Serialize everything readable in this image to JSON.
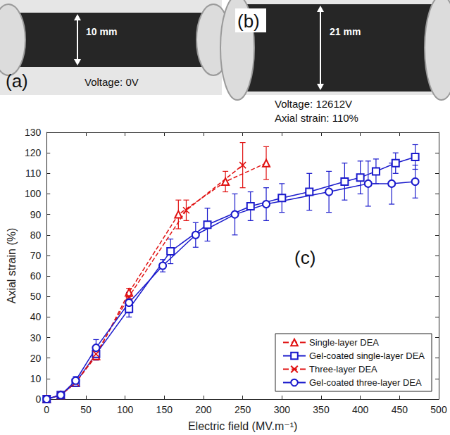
{
  "photos": [
    {
      "letter": "(a)",
      "dimension": "10 mm",
      "caption": [
        "Voltage: 0V"
      ]
    },
    {
      "letter": "(b)",
      "dimension": "21 mm",
      "caption": [
        "Voltage: 12612V",
        "Axial strain: 110%"
      ]
    }
  ],
  "chart_data": {
    "type": "line",
    "annotation": "(c)",
    "x_label": "Electric field (MV.m⁻¹)",
    "y_label": "Axial strain (%)",
    "xlim": [
      0,
      500
    ],
    "xticks": [
      0,
      50,
      100,
      150,
      200,
      250,
      300,
      350,
      400,
      450,
      500
    ],
    "ylim": [
      0,
      130
    ],
    "yticks": [
      0,
      10,
      20,
      30,
      40,
      50,
      60,
      70,
      80,
      90,
      100,
      110,
      120,
      130
    ],
    "grid": false,
    "legend": "lower right",
    "series": [
      {
        "name": "Single-layer DEA",
        "color": "#e01010",
        "marker": "triangle",
        "line_style": "dashed",
        "x": [
          0,
          18,
          37,
          63,
          105,
          168,
          228,
          280
        ],
        "values": [
          0,
          2,
          8,
          21,
          52,
          90,
          106,
          115
        ],
        "errors": [
          0,
          1,
          1,
          2,
          2,
          7,
          5,
          8
        ]
      },
      {
        "name": "Gel-coated single-layer DEA",
        "color": "#1a1acc",
        "marker": "square",
        "line_style": "solid",
        "x": [
          0,
          18,
          37,
          63,
          105,
          158,
          205,
          260,
          300,
          335,
          380,
          400,
          420,
          445,
          470
        ],
        "values": [
          0,
          2,
          8,
          22,
          44,
          72,
          85,
          94,
          98,
          101,
          106,
          108,
          111,
          115,
          118
        ],
        "errors": [
          0,
          1,
          1,
          3,
          4,
          6,
          8,
          7,
          7,
          9,
          9,
          8,
          6,
          5,
          6
        ]
      },
      {
        "name": "Three-layer DEA",
        "color": "#e01010",
        "marker": "x",
        "line_style": "dashed",
        "x": [
          0,
          18,
          37,
          63,
          105,
          178,
          250
        ],
        "values": [
          0,
          2,
          8,
          22,
          50,
          92,
          114
        ],
        "errors": [
          0,
          1,
          1,
          2,
          2,
          5,
          11
        ]
      },
      {
        "name": "Gel-coated three-layer DEA",
        "color": "#1a1acc",
        "marker": "circle",
        "line_style": "solid",
        "x": [
          0,
          18,
          37,
          63,
          105,
          148,
          190,
          240,
          280,
          360,
          410,
          440,
          470
        ],
        "values": [
          0,
          2,
          9,
          25,
          47,
          65,
          80,
          90,
          95,
          101,
          105,
          105,
          106
        ],
        "errors": [
          0,
          1,
          2,
          4,
          5,
          3,
          6,
          10,
          8,
          10,
          11,
          10,
          8
        ]
      }
    ]
  }
}
